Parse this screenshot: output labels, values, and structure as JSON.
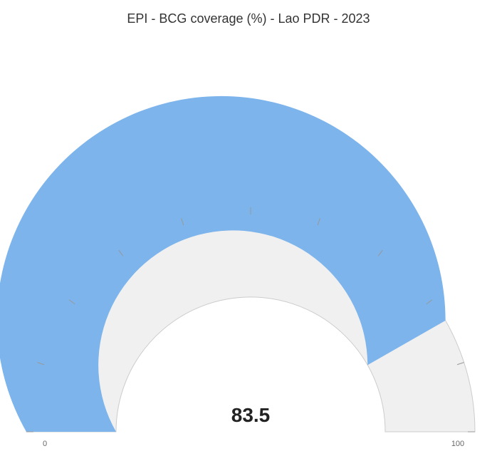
{
  "chart_data": {
    "type": "gauge",
    "title": "EPI - BCG coverage (%) - Lao PDR - 2023",
    "value": 83.5,
    "value_label": "83.5",
    "min": 0,
    "max": 100,
    "min_label": "0",
    "max_label": "100",
    "colors": {
      "value_arc": "#7cb4eb",
      "remainder_arc": "#f0f0f0",
      "remainder_border": "#cccccc",
      "tick": "#999999"
    }
  }
}
